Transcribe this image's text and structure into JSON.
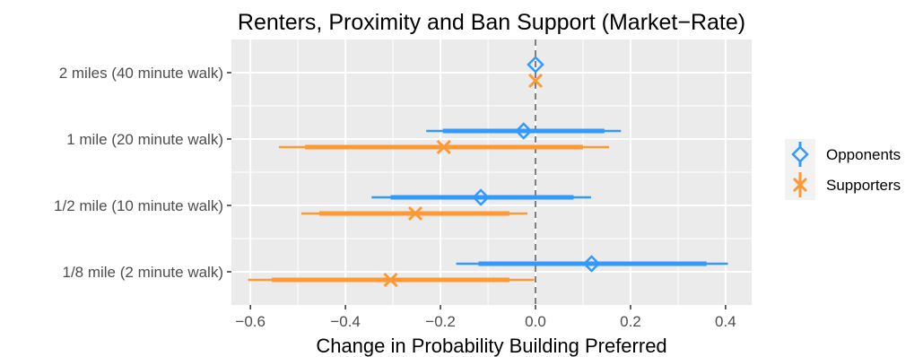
{
  "chart_data": {
    "type": "errorbar",
    "title": "Renters, Proximity and Ban Support (Market−Rate)",
    "xlabel": "Change in Probability Building Preferred",
    "ylabel": "",
    "xlim": [
      -0.64,
      0.455
    ],
    "xticks": [
      -0.6,
      -0.4,
      -0.2,
      0.0,
      0.2,
      0.4
    ],
    "xtick_labels": [
      "−0.6",
      "−0.4",
      "−0.2",
      "0.0",
      "0.2",
      "0.4"
    ],
    "categories": [
      "2 miles (40 minute walk)",
      "1 mile (20 minute walk)",
      "1/2 mile (10 minute walk)",
      "1/8 mile (2 minute walk)"
    ],
    "reference_line": 0,
    "grid": true,
    "legend_position": "right",
    "series": [
      {
        "name": "Opponents",
        "color": "#3399ff",
        "marker": "diamond",
        "points": [
          {
            "category": "2 miles (40 minute walk)",
            "estimate": 0.0,
            "ci90": [
              0.0,
              0.0
            ],
            "ci95": [
              0.0,
              0.0
            ]
          },
          {
            "category": "1 mile (20 minute walk)",
            "estimate": -0.025,
            "ci90": [
              -0.195,
              0.145
            ],
            "ci95": [
              -0.23,
              0.18
            ]
          },
          {
            "category": "1/2 mile (10 minute walk)",
            "estimate": -0.115,
            "ci90": [
              -0.305,
              0.08
            ],
            "ci95": [
              -0.345,
              0.117
            ]
          },
          {
            "category": "1/8 mile (2 minute walk)",
            "estimate": 0.118,
            "ci90": [
              -0.12,
              0.36
            ],
            "ci95": [
              -0.167,
              0.405
            ]
          }
        ]
      },
      {
        "name": "Supporters",
        "color": "#ff9933",
        "marker": "x",
        "points": [
          {
            "category": "2 miles (40 minute walk)",
            "estimate": 0.0,
            "ci90": [
              0.0,
              0.0
            ],
            "ci95": [
              0.0,
              0.0
            ]
          },
          {
            "category": "1 mile (20 minute walk)",
            "estimate": -0.193,
            "ci90": [
              -0.485,
              0.1
            ],
            "ci95": [
              -0.54,
              0.155
            ]
          },
          {
            "category": "1/2 mile (10 minute walk)",
            "estimate": -0.253,
            "ci90": [
              -0.455,
              -0.055
            ],
            "ci95": [
              -0.493,
              -0.017
            ]
          },
          {
            "category": "1/8 mile (2 minute walk)",
            "estimate": -0.305,
            "ci90": [
              -0.555,
              -0.055
            ],
            "ci95": [
              -0.605,
              -0.003
            ]
          }
        ]
      }
    ]
  }
}
